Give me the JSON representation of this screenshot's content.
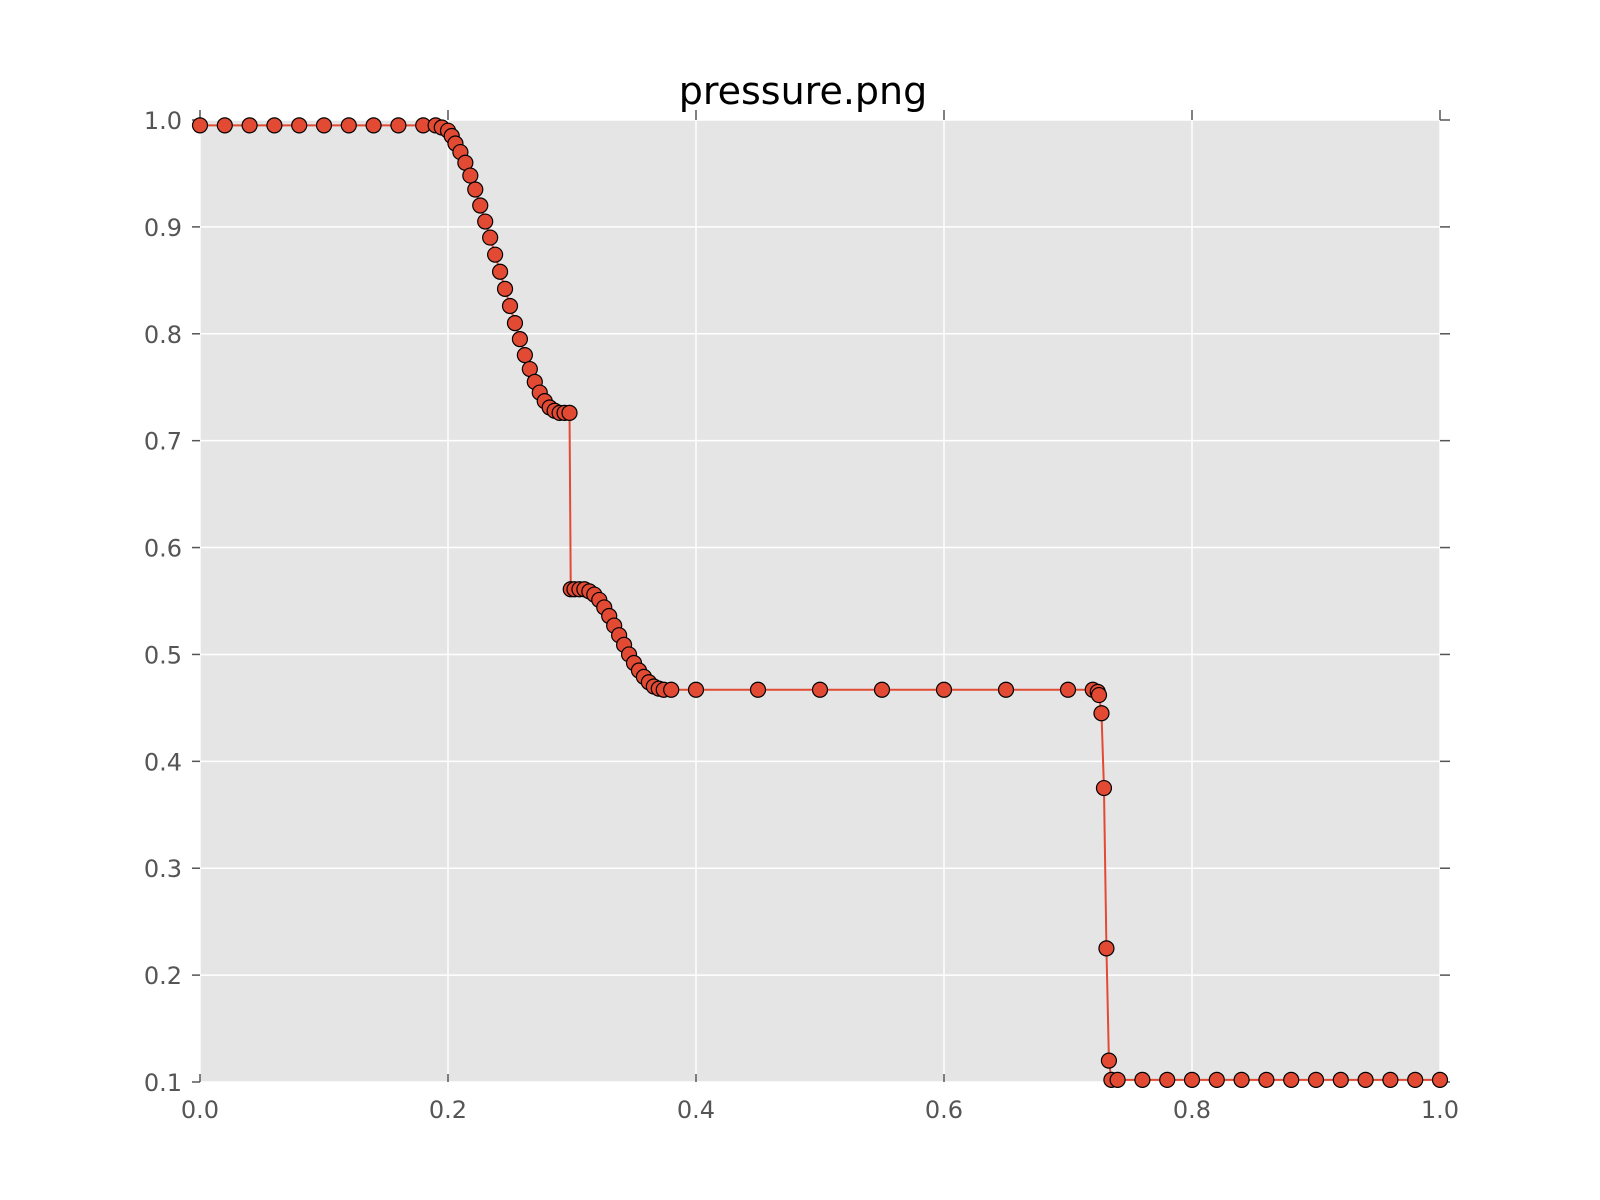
{
  "chart_data": {
    "type": "line",
    "title": "pressure.png",
    "xlabel": "",
    "ylabel": "",
    "xlim": [
      0.0,
      1.0
    ],
    "ylim": [
      0.1,
      1.0
    ],
    "x_ticks": [
      "0.0",
      "0.2",
      "0.4",
      "0.6",
      "0.8",
      "1.0"
    ],
    "y_ticks": [
      "1.0",
      "0.9",
      "0.8",
      "0.7",
      "0.6",
      "0.5",
      "0.4",
      "0.3",
      "0.2",
      "0.1"
    ],
    "grid": true,
    "markers": true,
    "colors": {
      "line": "#E24A33",
      "marker_fill": "#E24A33",
      "marker_edge": "#000000",
      "plot_background": "#E5E5E5",
      "grid": "#FFFFFF"
    },
    "series": [
      {
        "points": [
          [
            0.0,
            0.995
          ],
          [
            0.02,
            0.995
          ],
          [
            0.04,
            0.995
          ],
          [
            0.06,
            0.995
          ],
          [
            0.08,
            0.995
          ],
          [
            0.1,
            0.995
          ],
          [
            0.12,
            0.995
          ],
          [
            0.14,
            0.995
          ],
          [
            0.16,
            0.995
          ],
          [
            0.18,
            0.995
          ],
          [
            0.19,
            0.995
          ],
          [
            0.195,
            0.993
          ],
          [
            0.2,
            0.99
          ],
          [
            0.203,
            0.985
          ],
          [
            0.206,
            0.978
          ],
          [
            0.21,
            0.97
          ],
          [
            0.214,
            0.96
          ],
          [
            0.218,
            0.948
          ],
          [
            0.222,
            0.935
          ],
          [
            0.226,
            0.92
          ],
          [
            0.23,
            0.905
          ],
          [
            0.234,
            0.89
          ],
          [
            0.238,
            0.874
          ],
          [
            0.242,
            0.858
          ],
          [
            0.246,
            0.842
          ],
          [
            0.25,
            0.826
          ],
          [
            0.254,
            0.81
          ],
          [
            0.258,
            0.795
          ],
          [
            0.262,
            0.78
          ],
          [
            0.266,
            0.767
          ],
          [
            0.27,
            0.755
          ],
          [
            0.274,
            0.745
          ],
          [
            0.278,
            0.737
          ],
          [
            0.282,
            0.731
          ],
          [
            0.286,
            0.728
          ],
          [
            0.29,
            0.726
          ],
          [
            0.294,
            0.726
          ],
          [
            0.298,
            0.726
          ],
          [
            0.299,
            0.561
          ],
          [
            0.302,
            0.561
          ],
          [
            0.306,
            0.561
          ],
          [
            0.31,
            0.561
          ],
          [
            0.314,
            0.559
          ],
          [
            0.318,
            0.556
          ],
          [
            0.322,
            0.551
          ],
          [
            0.326,
            0.544
          ],
          [
            0.33,
            0.536
          ],
          [
            0.334,
            0.527
          ],
          [
            0.338,
            0.518
          ],
          [
            0.342,
            0.509
          ],
          [
            0.346,
            0.5
          ],
          [
            0.35,
            0.492
          ],
          [
            0.354,
            0.485
          ],
          [
            0.358,
            0.479
          ],
          [
            0.362,
            0.474
          ],
          [
            0.366,
            0.47
          ],
          [
            0.37,
            0.468
          ],
          [
            0.374,
            0.467
          ],
          [
            0.38,
            0.467
          ],
          [
            0.4,
            0.467
          ],
          [
            0.45,
            0.467
          ],
          [
            0.5,
            0.467
          ],
          [
            0.55,
            0.467
          ],
          [
            0.6,
            0.467
          ],
          [
            0.65,
            0.467
          ],
          [
            0.7,
            0.467
          ],
          [
            0.72,
            0.467
          ],
          [
            0.724,
            0.465
          ],
          [
            0.725,
            0.462
          ],
          [
            0.727,
            0.445
          ],
          [
            0.729,
            0.375
          ],
          [
            0.731,
            0.225
          ],
          [
            0.733,
            0.12
          ],
          [
            0.735,
            0.102
          ],
          [
            0.74,
            0.102
          ],
          [
            0.76,
            0.102
          ],
          [
            0.78,
            0.102
          ],
          [
            0.8,
            0.102
          ],
          [
            0.82,
            0.102
          ],
          [
            0.84,
            0.102
          ],
          [
            0.86,
            0.102
          ],
          [
            0.88,
            0.102
          ],
          [
            0.9,
            0.102
          ],
          [
            0.92,
            0.102
          ],
          [
            0.94,
            0.102
          ],
          [
            0.96,
            0.102
          ],
          [
            0.98,
            0.102
          ],
          [
            1.0,
            0.102
          ]
        ]
      }
    ]
  }
}
